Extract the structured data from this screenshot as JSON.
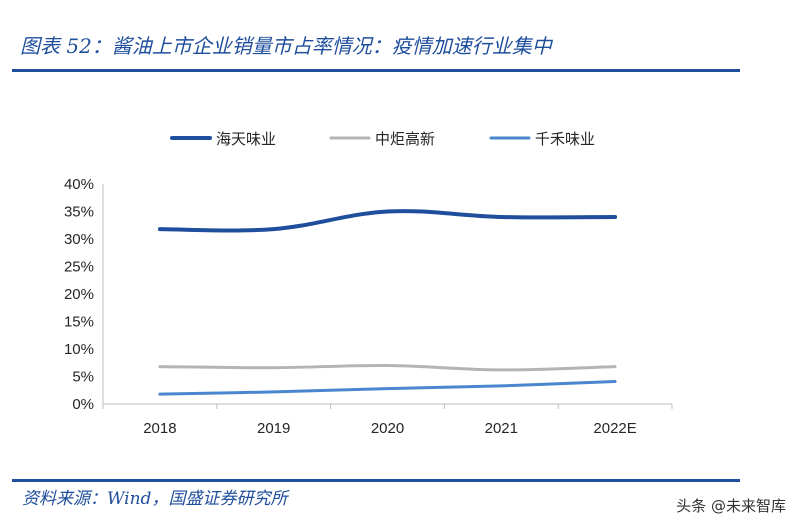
{
  "header": {
    "title": "图表 52：酱油上市企业销量市占率情况：疫情加速行业集中"
  },
  "footer": {
    "source": "资料来源：Wind，国盛证券研究所",
    "watermark": "头条 @未来智库"
  },
  "chart_data": {
    "type": "line",
    "x": [
      "2018",
      "2019",
      "2020",
      "2021",
      "2022E"
    ],
    "series": [
      {
        "name": "海天味业",
        "color": "#1f4e9c",
        "values": [
          31.8,
          31.8,
          35.0,
          34.0,
          34.0
        ]
      },
      {
        "name": "中炬高新",
        "color": "#b4b4b4",
        "values": [
          6.8,
          6.6,
          7.0,
          6.2,
          6.8
        ]
      },
      {
        "name": "千禾味业",
        "color": "#4a86d0",
        "values": [
          1.8,
          2.2,
          2.8,
          3.3,
          4.1
        ]
      }
    ],
    "ylim": [
      0,
      40
    ],
    "yticks": [
      "0%",
      "5%",
      "10%",
      "15%",
      "20%",
      "25%",
      "30%",
      "35%",
      "40%"
    ],
    "xlabel": "",
    "ylabel": "",
    "legend_position": "top",
    "grid": false
  }
}
